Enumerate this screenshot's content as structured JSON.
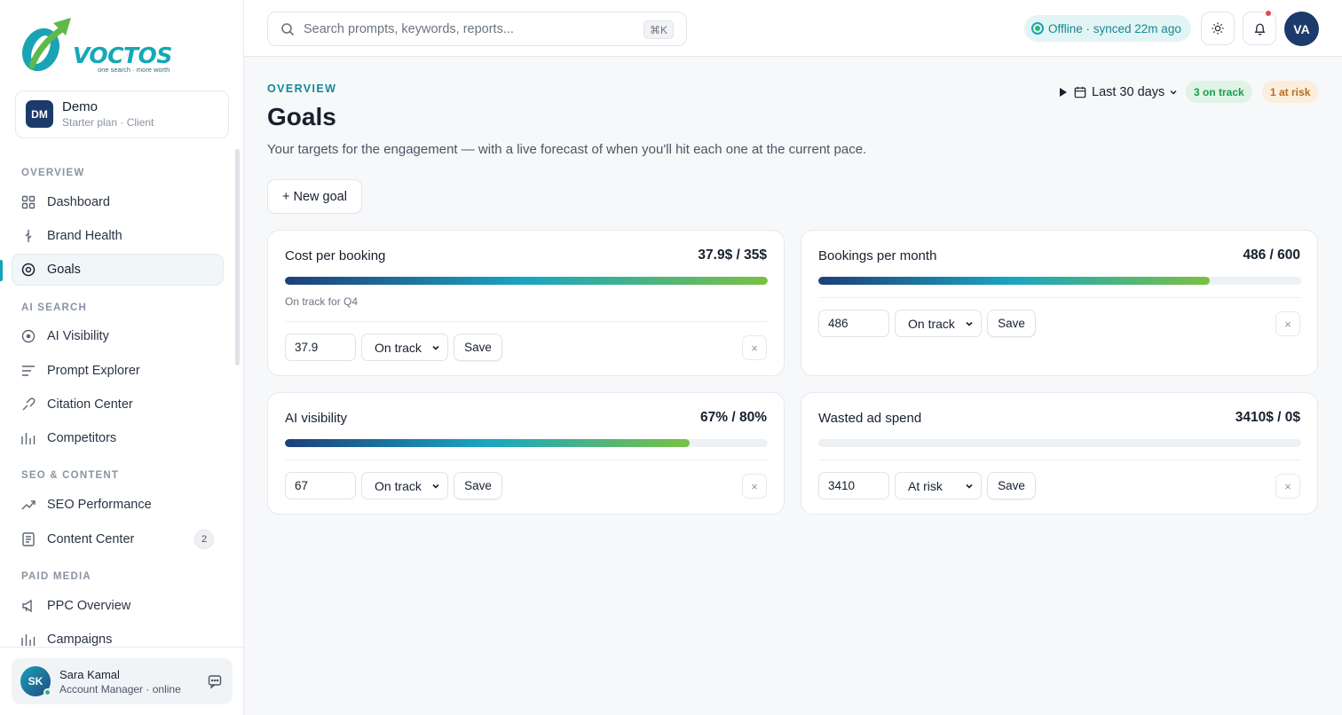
{
  "brand": {
    "name": "VOCTOS",
    "tagline": "one search · more worth",
    "accent": "#13a9b5"
  },
  "workspace": {
    "initials": "DM",
    "name": "Demo",
    "plan": "Starter plan · Client"
  },
  "sidebar": {
    "sections": [
      {
        "title": "OVERVIEW"
      },
      {
        "title": "AI SEARCH"
      },
      {
        "title": "SEO & CONTENT"
      },
      {
        "title": "PAID MEDIA"
      }
    ],
    "items": [
      {
        "label": "Dashboard",
        "icon": "grid-icon"
      },
      {
        "label": "Brand Health",
        "icon": "pulse-icon"
      },
      {
        "label": "Goals",
        "icon": "target-icon",
        "active": true
      },
      {
        "label": "AI Visibility",
        "icon": "radar-icon"
      },
      {
        "label": "Prompt Explorer",
        "icon": "list-icon"
      },
      {
        "label": "Citation Center",
        "icon": "link-icon"
      },
      {
        "label": "Competitors",
        "icon": "bar-chart-icon"
      },
      {
        "label": "SEO Performance",
        "icon": "trend-icon"
      },
      {
        "label": "Content Center",
        "icon": "document-icon",
        "badge": "2"
      },
      {
        "label": "PPC Overview",
        "icon": "megaphone-icon"
      },
      {
        "label": "Campaigns",
        "icon": "bar-chart-icon"
      }
    ]
  },
  "user": {
    "initials": "SK",
    "name": "Sara Kamal",
    "role": "Account Manager · online"
  },
  "topbar": {
    "search_placeholder": "Search prompts, keywords, reports...",
    "shortcut": "⌘K",
    "status": "Offline · synced 22m ago",
    "avatar": "VA"
  },
  "page": {
    "eyebrow": "OVERVIEW",
    "title": "Goals",
    "subtitle": "Your targets for the engagement — with a live forecast of when you'll hit each one at the current pace.",
    "range": "Last 30 days",
    "on_track": "3 on track",
    "at_risk": "1 at risk",
    "new_goal": "+ New goal"
  },
  "goals": [
    {
      "title": "Cost per booking",
      "value": "37.9$ / 35$",
      "progress": 1.0,
      "note": "On track for Q4",
      "input": "37.9",
      "status": "On track",
      "save": "Save",
      "remove": "×"
    },
    {
      "title": "Bookings per month",
      "value": "486 / 600",
      "progress": 0.81,
      "note": "",
      "input": "486",
      "status": "On track",
      "save": "Save",
      "remove": "×"
    },
    {
      "title": "AI visibility",
      "value": "67% / 80%",
      "progress": 0.8375,
      "note": "",
      "input": "67",
      "status": "On track",
      "save": "Save",
      "remove": "×"
    },
    {
      "title": "Wasted ad spend",
      "value": "3410$ / 0$",
      "progress": 0,
      "note": "",
      "input": "3410",
      "status": "At risk",
      "save": "Save",
      "remove": "×"
    }
  ]
}
